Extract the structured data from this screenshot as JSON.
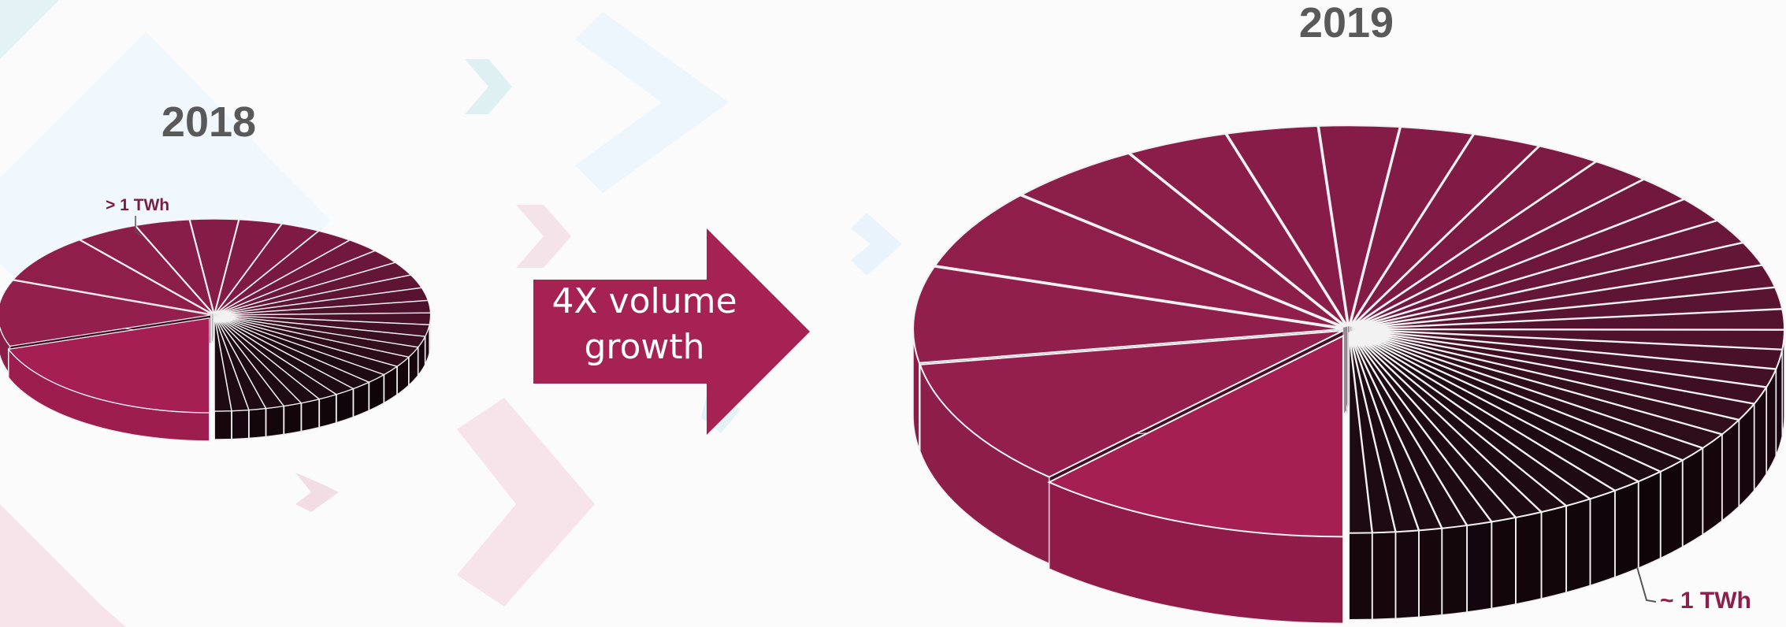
{
  "arrow": {
    "text": "4X volume growth",
    "color": "#a52252"
  },
  "colors": {
    "largest_slice": "#a51f52",
    "mid_slices": "#7d1a44",
    "small_slices": "#1e0a12",
    "background_shapes": [
      "#e8f3fb",
      "#e3f2f5",
      "#f6e4ea"
    ]
  },
  "chart_data": [
    {
      "type": "pie",
      "title": "2018",
      "style": "3d-exploded",
      "annotation": {
        "text": "> 1 TWh",
        "target": "slice-3"
      },
      "values": [
        20,
        11.5,
        8.5,
        4.8,
        4.2,
        3.7,
        3.3,
        3.0,
        2.8,
        2.6,
        2.5,
        2.4,
        2.3,
        2.2,
        2.1,
        2.0,
        2.0,
        1.9,
        1.8,
        1.8,
        1.7,
        1.7,
        1.6,
        1.6,
        1.5,
        1.5,
        1.4,
        1.4,
        1.3,
        1.3,
        1.3
      ]
    },
    {
      "type": "pie",
      "title": "2019",
      "style": "3d-exploded",
      "annotation": {
        "text": "~ 1 TWh",
        "target": "small-slices"
      },
      "values": [
        14,
        12,
        9,
        7.5,
        6,
        4.5,
        4,
        3.5,
        3.2,
        3.0,
        2.8,
        2.6,
        2.5,
        2.4,
        2.3,
        2.2,
        2.1,
        2.0,
        1.9,
        1.8,
        1.8,
        1.7,
        1.6,
        1.6,
        1.5,
        1.5,
        1.4,
        1.4,
        1.3,
        1.3,
        1.3,
        1.2,
        1.2,
        1.2,
        1.1,
        1.1,
        1.1,
        1.0,
        1.0,
        1.0,
        1.0
      ]
    }
  ]
}
